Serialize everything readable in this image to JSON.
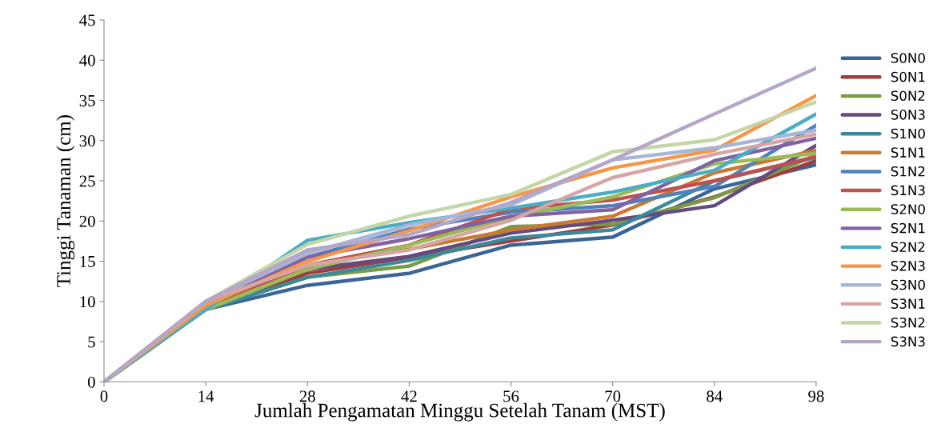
{
  "chart_data": {
    "type": "line",
    "xlabel": "Jumlah Pengamatan Minggu Setelah Tanam (MST)",
    "ylabel": "Tinggi Tanaman (cm)",
    "x": [
      0,
      14,
      28,
      42,
      56,
      70,
      84,
      98
    ],
    "xlim": [
      0,
      98
    ],
    "xticks": [
      0,
      14,
      28,
      42,
      56,
      70,
      84,
      98
    ],
    "ylim": [
      0,
      45
    ],
    "yticks": [
      0,
      5,
      10,
      15,
      20,
      25,
      30,
      35,
      40,
      45
    ],
    "grid": false,
    "legend": "right",
    "marker": "none",
    "line_style": "solid",
    "series": [
      {
        "name": "S0N0",
        "color": "#3a6597",
        "values": [
          0,
          9,
          12,
          13.5,
          17,
          18,
          24,
          27
        ]
      },
      {
        "name": "S0N1",
        "color": "#a03c3a",
        "values": [
          0,
          9,
          13.5,
          15.5,
          17.5,
          19.5,
          23,
          27.5
        ]
      },
      {
        "name": "S0N2",
        "color": "#7b9a45",
        "values": [
          0,
          9,
          13,
          14.4,
          19.3,
          19.6,
          22.9,
          28.2
        ]
      },
      {
        "name": "S0N3",
        "color": "#654a80",
        "values": [
          0,
          9,
          14,
          15.6,
          18.5,
          20.1,
          21.9,
          29.4
        ]
      },
      {
        "name": "S1N0",
        "color": "#3a8a9c",
        "values": [
          0,
          9,
          13,
          15.1,
          17.9,
          18.9,
          25,
          27.9
        ]
      },
      {
        "name": "S1N1",
        "color": "#c97a30",
        "values": [
          0,
          9,
          14.5,
          16.5,
          18.9,
          20.6,
          26,
          28.8
        ]
      },
      {
        "name": "S1N2",
        "color": "#4f81bd",
        "values": [
          0,
          9.5,
          15.5,
          19,
          21.1,
          21.9,
          24.3,
          31.9
        ]
      },
      {
        "name": "S1N3",
        "color": "#c0504d",
        "values": [
          0,
          9.5,
          14.5,
          17,
          21.5,
          22.6,
          25,
          28
        ]
      },
      {
        "name": "S2N0",
        "color": "#9bbb59",
        "values": [
          0,
          9,
          14,
          17,
          20.5,
          23,
          27.1,
          28.4
        ]
      },
      {
        "name": "S2N1",
        "color": "#8064a2",
        "values": [
          0,
          9.5,
          15.5,
          17.8,
          20.6,
          21.4,
          27.5,
          30.3
        ]
      },
      {
        "name": "S2N2",
        "color": "#4bacc6",
        "values": [
          0,
          9,
          17.6,
          19.8,
          21.6,
          23.6,
          26.3,
          33.3
        ]
      },
      {
        "name": "S2N3",
        "color": "#f79646",
        "values": [
          0,
          9.5,
          15,
          18.8,
          23,
          26.6,
          28.8,
          35.6
        ]
      },
      {
        "name": "S3N0",
        "color": "#a5b6d6",
        "values": [
          0,
          10,
          16,
          19.5,
          22,
          27.6,
          29.1,
          31.3
        ]
      },
      {
        "name": "S3N1",
        "color": "#d6a5a4",
        "values": [
          0,
          10,
          14.5,
          16.4,
          20.1,
          25.4,
          28.3,
          30.8
        ]
      },
      {
        "name": "S3N2",
        "color": "#c4d5a8",
        "values": [
          0,
          10,
          17.1,
          20.6,
          23.3,
          28.6,
          30.1,
          34.8
        ]
      },
      {
        "name": "S3N3",
        "color": "#b5a6c8",
        "values": [
          0,
          10,
          16.4,
          18.3,
          22.3,
          27.6,
          33.3,
          39.0
        ]
      }
    ]
  }
}
